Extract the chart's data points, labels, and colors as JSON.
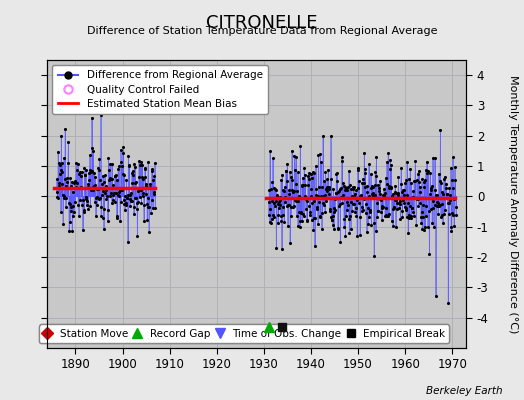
{
  "title": "CITRONELLE",
  "subtitle": "Difference of Station Temperature Data from Regional Average",
  "ylabel": "Monthly Temperature Anomaly Difference (°C)",
  "xlim": [
    1884,
    1973
  ],
  "ylim": [
    -5,
    4.5
  ],
  "yticks": [
    -4,
    -3,
    -2,
    -1,
    0,
    1,
    2,
    3,
    4
  ],
  "xticks": [
    1890,
    1900,
    1910,
    1920,
    1930,
    1940,
    1950,
    1960,
    1970
  ],
  "fig_bg_color": "#e8e8e8",
  "plot_bg_color": "#c8c8c8",
  "grid_color": "#b0b0b8",
  "line_color": "#5555ff",
  "dot_color": "#000000",
  "bias_color": "#ff0000",
  "segment1_x_start": 1885.5,
  "segment1_x_end": 1906.8,
  "segment1_bias": 0.28,
  "segment2_x_start": 1930.5,
  "segment2_x_end": 1970.5,
  "segment2_bias": -0.05,
  "gap_marker_x": 1931.2,
  "gap_marker_y": -4.3,
  "break_marker_x": 1933.8,
  "break_marker_y": -4.3,
  "watermark": "Berkeley Earth"
}
